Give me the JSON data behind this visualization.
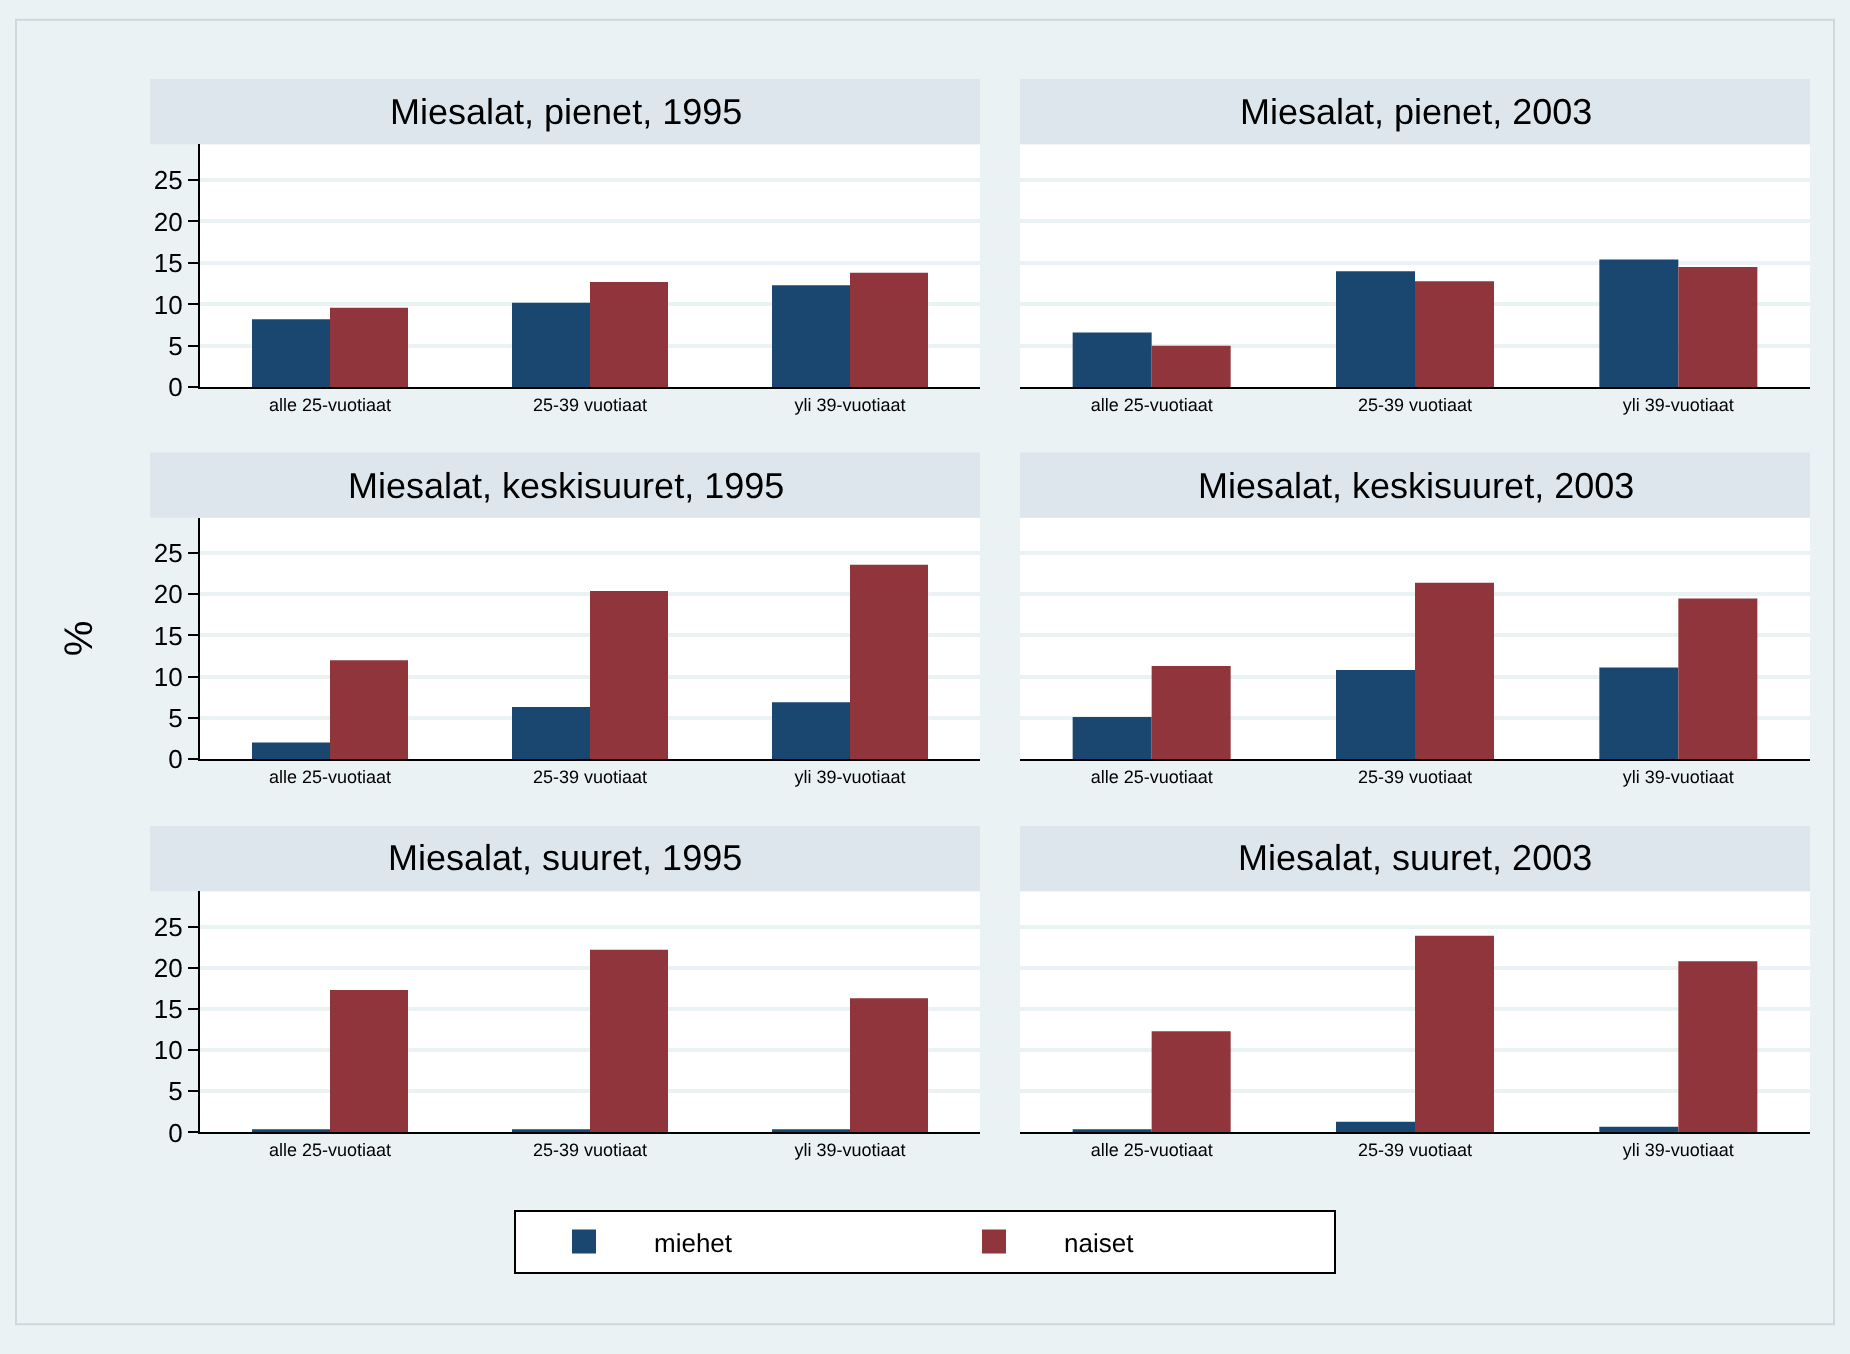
{
  "chart_data": [
    {
      "type": "bar",
      "title": "Miesalat, pienet, 1995",
      "categories": [
        "alle 25-vuotiaat",
        "25-39 vuotiaat",
        "yli 39-vuotiaat"
      ],
      "ylim": [
        0,
        29.3
      ],
      "yticks": [
        0,
        5,
        10,
        15,
        20,
        25
      ],
      "grid": "y",
      "legend": "bottom",
      "series": [
        {
          "name": "miehet",
          "color": "#1a476f",
          "values": [
            8.2,
            10.2,
            12.3
          ]
        },
        {
          "name": "naiset",
          "color": "#90353b",
          "values": [
            9.6,
            12.7,
            13.8
          ]
        }
      ]
    },
    {
      "type": "bar",
      "title": "Miesalat, pienet, 2003",
      "categories": [
        "alle 25-vuotiaat",
        "25-39 vuotiaat",
        "yli 39-vuotiaat"
      ],
      "ylim": [
        0,
        29.3
      ],
      "yticks": [
        0,
        5,
        10,
        15,
        20,
        25
      ],
      "grid": "y",
      "tick_labels": "x",
      "legend": "bottom",
      "series": [
        {
          "name": "miehet",
          "color": "#1a476f",
          "values": [
            6.6,
            14.0,
            15.4
          ]
        },
        {
          "name": "naiset",
          "color": "#90353b",
          "values": [
            5.0,
            12.8,
            14.5
          ]
        }
      ]
    },
    {
      "type": "bar",
      "title": "Miesalat, keskisuuret, 1995",
      "ylabel": "%",
      "categories": [
        "alle 25-vuotiaat",
        "25-39 vuotiaat",
        "yli 39-vuotiaat"
      ],
      "ylim": [
        0,
        29.3
      ],
      "yticks": [
        0,
        5,
        10,
        15,
        20,
        25
      ],
      "grid": "y",
      "legend": "bottom",
      "series": [
        {
          "name": "miehet",
          "color": "#1a476f",
          "values": [
            2.0,
            6.3,
            6.9
          ]
        },
        {
          "name": "naiset",
          "color": "#90353b",
          "values": [
            12.0,
            20.4,
            23.6
          ]
        }
      ]
    },
    {
      "type": "bar",
      "title": "Miesalat, keskisuuret, 2003",
      "categories": [
        "alle 25-vuotiaat",
        "25-39 vuotiaat",
        "yli 39-vuotiaat"
      ],
      "ylim": [
        0,
        29.3
      ],
      "yticks": [
        0,
        5,
        10,
        15,
        20,
        25
      ],
      "grid": "y",
      "tick_labels": "x",
      "legend": "bottom",
      "series": [
        {
          "name": "miehet",
          "color": "#1a476f",
          "values": [
            5.1,
            10.8,
            11.1
          ]
        },
        {
          "name": "naiset",
          "color": "#90353b",
          "values": [
            11.3,
            21.4,
            19.5
          ]
        }
      ]
    },
    {
      "type": "bar",
      "title": "Miesalat, suuret, 1995",
      "categories": [
        "alle 25-vuotiaat",
        "25-39 vuotiaat",
        "yli 39-vuotiaat"
      ],
      "ylim": [
        0,
        29.3
      ],
      "yticks": [
        0,
        5,
        10,
        15,
        20,
        25
      ],
      "grid": "y",
      "legend": "bottom",
      "series": [
        {
          "name": "miehet",
          "color": "#1a476f",
          "values": [
            0.4,
            0.4,
            0.2
          ]
        },
        {
          "name": "naiset",
          "color": "#90353b",
          "values": [
            17.3,
            22.2,
            16.3
          ]
        }
      ]
    },
    {
      "type": "bar",
      "title": "Miesalat, suuret, 2003",
      "categories": [
        "alle 25-vuotiaat",
        "25-39 vuotiaat",
        "yli 39-vuotiaat"
      ],
      "ylim": [
        0,
        29.3
      ],
      "yticks": [
        0,
        5,
        10,
        15,
        20,
        25
      ],
      "grid": "y",
      "tick_labels": "x",
      "legend": "bottom",
      "series": [
        {
          "name": "miehet",
          "color": "#1a476f",
          "values": [
            0.2,
            1.3,
            0.7
          ]
        },
        {
          "name": "naiset",
          "color": "#90353b",
          "values": [
            12.3,
            23.9,
            20.8
          ]
        }
      ]
    }
  ]
}
